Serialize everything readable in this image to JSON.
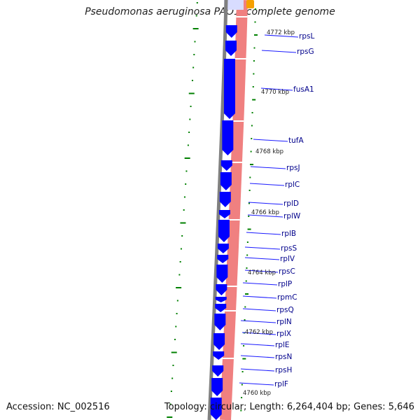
{
  "map": {
    "title": "Pseudomonas aeruginosa PAO1, complete genome",
    "accession": "Accession: NC_002516",
    "topology": "Topology: circular; Length: 6,264,404 bp; Genes: 5,646",
    "colors": {
      "backbone": "#808080",
      "cds_forward": "#0000ff",
      "cds_reverse_track": "#f08080",
      "orange_feature": "#f5a000",
      "tick": "#008000",
      "label": "#00008b",
      "leader": "#1a1aff"
    },
    "scale_labels": [
      "4772 kbp",
      "4770 kbp",
      "4768 kbp",
      "4766 kbp",
      "4764 kbp",
      "4762 kbp",
      "4760 kbp"
    ],
    "genes": [
      "rpsL",
      "rpsG",
      "fusA1",
      "tufA",
      "rpsJ",
      "rplC",
      "rplD",
      "rplW",
      "rplB",
      "rpsS",
      "rplV",
      "rpsC",
      "rplP",
      "rpmC",
      "rpsQ",
      "rplN",
      "rplX",
      "rplE",
      "rpsN",
      "rpsH",
      "rplF"
    ]
  }
}
